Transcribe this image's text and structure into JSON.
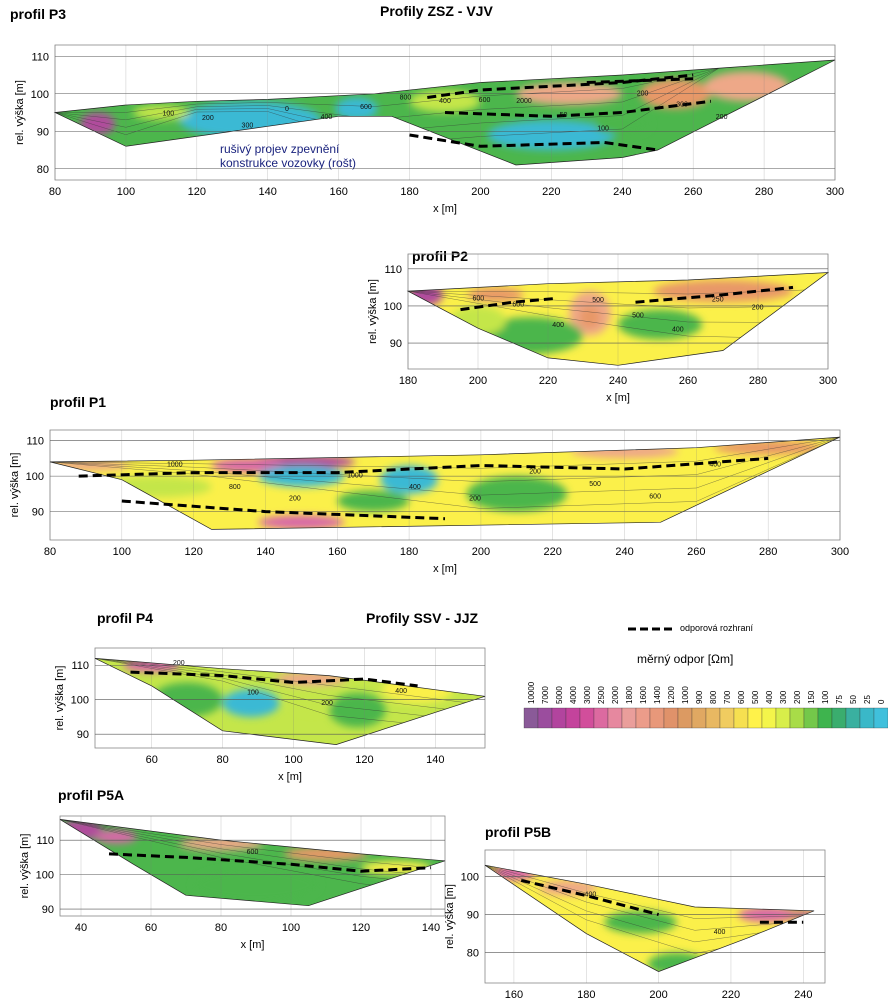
{
  "headings": {
    "group1": "Profily ZSZ - VJV",
    "group2": "Profily SSV - JJZ"
  },
  "legend": {
    "interface_label": "odporová rozhraní",
    "scale_title": "měrný odpor [Ωm]",
    "values": [
      "10000",
      "7000",
      "5000",
      "4000",
      "3000",
      "2500",
      "2000",
      "1800",
      "1600",
      "1400",
      "1200",
      "1000",
      "900",
      "800",
      "700",
      "600",
      "500",
      "400",
      "300",
      "200",
      "150",
      "100",
      "75",
      "50",
      "25",
      "0"
    ],
    "colors": [
      "#8a5a98",
      "#9b4d9e",
      "#b2449e",
      "#c4439c",
      "#d24e9b",
      "#dc6aa0",
      "#e6889f",
      "#ea9e9b",
      "#ec9c8a",
      "#e8987a",
      "#e0926a",
      "#dc9a62",
      "#e0a862",
      "#e8b862",
      "#f0cc60",
      "#f6e050",
      "#fff24a",
      "#f4f54a",
      "#d8ee4a",
      "#a8dc48",
      "#74c84a",
      "#3eb44e",
      "#3aad6e",
      "#3ab0a0",
      "#3ab8c8",
      "#40c0dc"
    ]
  },
  "colors": {
    "purple": "#b04c9c",
    "magenta": "#d868a8",
    "orange": "#e89868",
    "salmon": "#eea888",
    "yellow": "#fbf04a",
    "lime": "#c4e64a",
    "green": "#4cb64c",
    "cyan": "#3ab9d4",
    "teal": "#3aaa9a"
  },
  "chart_data": [
    {
      "id": "P3",
      "type": "heatmap",
      "title": "profil P3",
      "xlabel": "x [m]",
      "ylabel": "rel. výška [m]",
      "xlim": [
        80,
        300
      ],
      "ylim": [
        77,
        113
      ],
      "xticks": [
        "80",
        "100",
        "120",
        "140",
        "160",
        "180",
        "200",
        "220",
        "240",
        "260",
        "280",
        "300"
      ],
      "yticks": [
        "80",
        "90",
        "100",
        "110"
      ],
      "top_surface": [
        [
          80,
          95
        ],
        [
          100,
          97
        ],
        [
          120,
          98
        ],
        [
          140,
          98.5
        ],
        [
          170,
          100
        ],
        [
          200,
          103
        ],
        [
          240,
          105
        ],
        [
          270,
          107
        ],
        [
          300,
          109
        ]
      ],
      "bottom_surface": [
        [
          80,
          95
        ],
        [
          100,
          86
        ],
        [
          160,
          94
        ],
        [
          175,
          94
        ],
        [
          210,
          81
        ],
        [
          240,
          83
        ],
        [
          250,
          85
        ],
        [
          300,
          109
        ]
      ],
      "contour_labels": [
        "100",
        "200",
        "300",
        "0",
        "400",
        "600",
        "800",
        "400",
        "600",
        "2000",
        "50",
        "100",
        "200",
        "300",
        "200"
      ],
      "annotation": [
        "rušivý projev zpevnění",
        "konstrukce vozovky (rošt)"
      ]
    },
    {
      "id": "P2",
      "type": "heatmap",
      "title": "profil P2",
      "xlabel": "x [m]",
      "ylabel": "rel. výška [m]",
      "xlim": [
        180,
        300
      ],
      "ylim": [
        83,
        114
      ],
      "xticks": [
        "180",
        "200",
        "220",
        "240",
        "260",
        "280",
        "300"
      ],
      "yticks": [
        "90",
        "100",
        "110"
      ],
      "top_surface": [
        [
          180,
          104
        ],
        [
          220,
          106
        ],
        [
          260,
          107
        ],
        [
          300,
          109
        ]
      ],
      "bottom_surface": [
        [
          180,
          104
        ],
        [
          200,
          94
        ],
        [
          220,
          86
        ],
        [
          240,
          84
        ],
        [
          270,
          88
        ],
        [
          300,
          109
        ]
      ],
      "contour_labels": [
        "600",
        "600",
        "400",
        "500",
        "500",
        "400",
        "250",
        "200"
      ]
    },
    {
      "id": "P1",
      "type": "heatmap",
      "title": "profil P1",
      "xlabel": "x [m]",
      "ylabel": "rel. výška [m]",
      "xlim": [
        80,
        300
      ],
      "ylim": [
        82,
        113
      ],
      "xticks": [
        "80",
        "100",
        "120",
        "140",
        "160",
        "180",
        "200",
        "220",
        "240",
        "260",
        "280",
        "300"
      ],
      "yticks": [
        "90",
        "100",
        "110"
      ],
      "top_surface": [
        [
          80,
          104
        ],
        [
          120,
          104.5
        ],
        [
          200,
          106
        ],
        [
          260,
          108
        ],
        [
          300,
          111
        ]
      ],
      "bottom_surface": [
        [
          80,
          104
        ],
        [
          100,
          99
        ],
        [
          125,
          85
        ],
        [
          250,
          87
        ],
        [
          300,
          111
        ]
      ],
      "contour_labels": [
        "1000",
        "800",
        "200",
        "1000",
        "400",
        "200",
        "200",
        "500",
        "600",
        "400"
      ]
    },
    {
      "id": "P4",
      "type": "heatmap",
      "title": "profil P4",
      "xlabel": "x [m]",
      "ylabel": "rel. výška [m]",
      "xlim": [
        44,
        154
      ],
      "ylim": [
        86,
        115
      ],
      "xticks": [
        "60",
        "80",
        "100",
        "120",
        "140"
      ],
      "yticks": [
        "90",
        "100",
        "110"
      ],
      "top_surface": [
        [
          44,
          112
        ],
        [
          80,
          109
        ],
        [
          110,
          107
        ],
        [
          154,
          101
        ]
      ],
      "bottom_surface": [
        [
          44,
          112
        ],
        [
          60,
          104
        ],
        [
          80,
          91
        ],
        [
          112,
          87
        ],
        [
          154,
          101
        ]
      ],
      "contour_labels": [
        "200",
        "100",
        "200",
        "400"
      ]
    },
    {
      "id": "P5A",
      "type": "heatmap",
      "title": "profil P5A",
      "xlabel": "x [m]",
      "ylabel": "rel. výška [m]",
      "xlim": [
        34,
        144
      ],
      "ylim": [
        88,
        117
      ],
      "xticks": [
        "40",
        "60",
        "80",
        "100",
        "120",
        "140"
      ],
      "yticks": [
        "90",
        "100",
        "110"
      ],
      "top_surface": [
        [
          34,
          116
        ],
        [
          80,
          110
        ],
        [
          120,
          106
        ],
        [
          144,
          104
        ]
      ],
      "bottom_surface": [
        [
          34,
          116
        ],
        [
          55,
          103
        ],
        [
          70,
          94
        ],
        [
          105,
          91
        ],
        [
          144,
          104
        ]
      ],
      "contour_labels": [
        "600"
      ]
    },
    {
      "id": "P5B",
      "type": "heatmap",
      "title": "profil P5B",
      "xlabel": "x [m]",
      "ylabel": "rel. výška [m]",
      "xlim": [
        152,
        246
      ],
      "ylim": [
        72,
        107
      ],
      "xticks": [
        "160",
        "180",
        "200",
        "220",
        "240"
      ],
      "yticks": [
        "80",
        "90",
        "100"
      ],
      "top_surface": [
        [
          152,
          103
        ],
        [
          180,
          98
        ],
        [
          210,
          92
        ],
        [
          243,
          91
        ]
      ],
      "bottom_surface": [
        [
          152,
          103
        ],
        [
          180,
          85
        ],
        [
          200,
          75
        ],
        [
          225,
          84
        ],
        [
          243,
          91
        ]
      ],
      "contour_labels": [
        "400",
        "400"
      ]
    }
  ]
}
